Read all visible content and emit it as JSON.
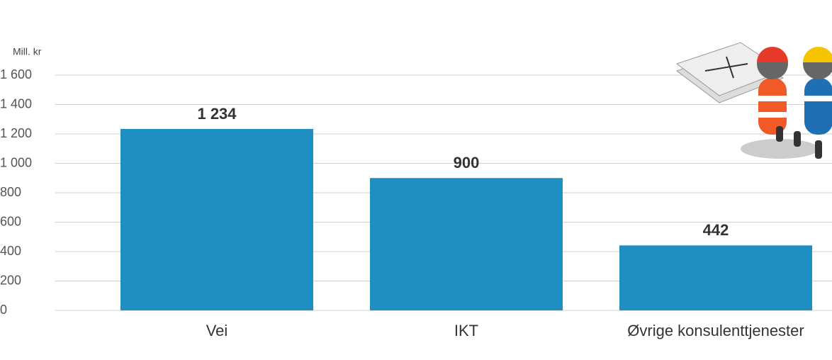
{
  "chart_data": {
    "type": "bar",
    "y_axis_label": "Mill. kr",
    "categories": [
      "Vei",
      "IKT",
      "Øvrige konsulenttjenester"
    ],
    "values": [
      1234,
      900,
      442
    ],
    "value_labels": [
      "1 234",
      "900",
      "442"
    ],
    "color": "#1f8fc2",
    "ylim": [
      0,
      1600
    ],
    "yticks": [
      0,
      200,
      400,
      600,
      800,
      {
        "value": 1000,
        "label": "1 000"
      },
      {
        "value": 1200,
        "label": "1 200"
      },
      {
        "value": 1400,
        "label": "1 400"
      },
      {
        "value": 1600,
        "label": "1 600"
      }
    ],
    "grid": true
  }
}
